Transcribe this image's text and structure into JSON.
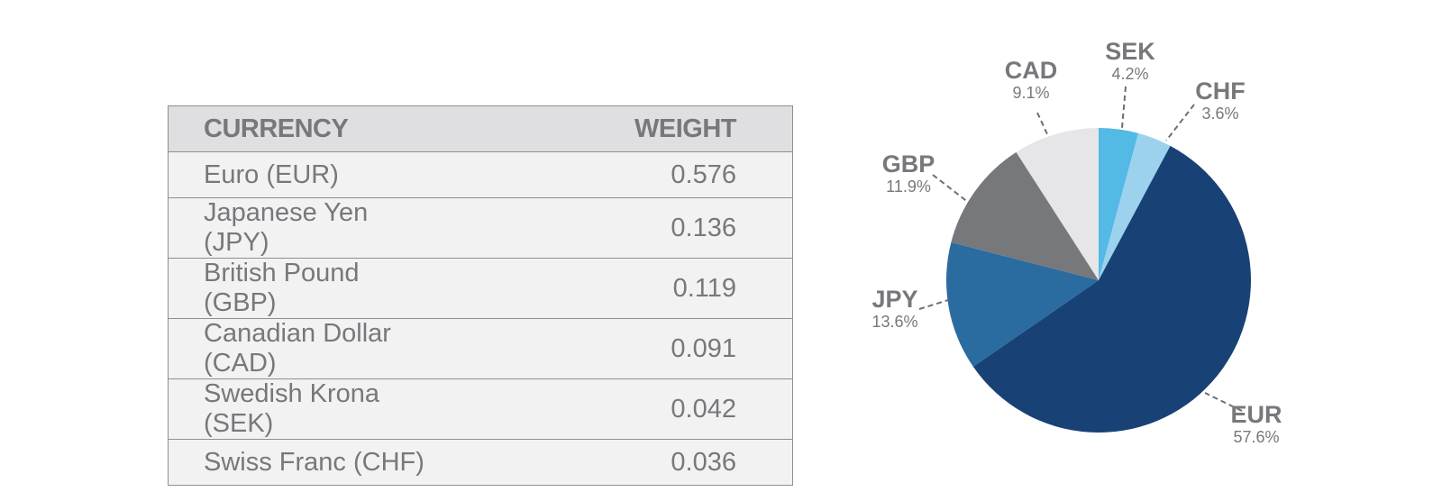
{
  "table": {
    "headers": {
      "currency": "CURRENCY",
      "weight": "WEIGHT"
    },
    "rows": [
      {
        "currency": "Euro (EUR)",
        "weight": "0.576"
      },
      {
        "currency": "Japanese Yen (JPY)",
        "weight": "0.136"
      },
      {
        "currency": "British Pound (GBP)",
        "weight": "0.119"
      },
      {
        "currency": "Canadian Dollar (CAD)",
        "weight": "0.091"
      },
      {
        "currency": "Swedish Krona (SEK)",
        "weight": "0.042"
      },
      {
        "currency": "Swiss Franc (CHF)",
        "weight": "0.036"
      }
    ]
  },
  "chart_data": {
    "type": "pie",
    "title": "",
    "start": "12 o'clock, clockwise",
    "slices": [
      {
        "code": "SEK",
        "label": "4.2%",
        "value": 4.2,
        "color": "#53b9e5"
      },
      {
        "code": "CHF",
        "label": "3.6%",
        "value": 3.6,
        "color": "#9dd2ef"
      },
      {
        "code": "EUR",
        "label": "57.6%",
        "value": 57.6,
        "color": "#184275"
      },
      {
        "code": "JPY",
        "label": "13.6%",
        "value": 13.6,
        "color": "#2a6ba0"
      },
      {
        "code": "GBP",
        "label": "11.9%",
        "value": 11.9,
        "color": "#77787b"
      },
      {
        "code": "CAD",
        "label": "9.1%",
        "value": 9.1,
        "color": "#e6e6e8"
      }
    ]
  }
}
